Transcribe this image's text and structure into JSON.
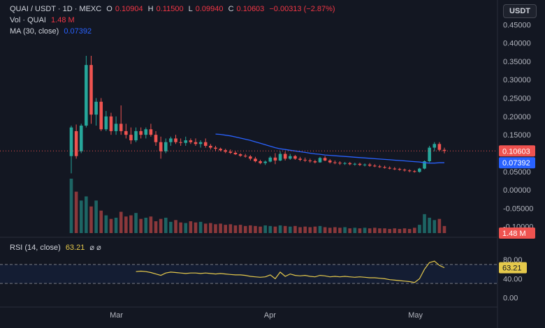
{
  "header": {
    "symbol": "QUAI / USDT · 1D · MEXC",
    "o_label": "O",
    "o_value": "0.10904",
    "h_label": "H",
    "h_value": "0.11500",
    "l_label": "L",
    "l_value": "0.09940",
    "c_label": "C",
    "c_value": "0.10603",
    "change": "−0.00313 (−2.87%)",
    "vol_label": "Vol · QUAI",
    "vol_value": "1.48 M",
    "ma_label": "MA (30, close)",
    "ma_value": "0.07392",
    "rsi_label": "RSI (14, close)",
    "rsi_value": "63.21",
    "currency_button": "USDT",
    "eye_icons": "⌀ ⌀"
  },
  "colors": {
    "up": "#26a69a",
    "down": "#ef5350",
    "ma": "#2962ff",
    "rsi": "#e5c94b",
    "bg": "#131722"
  },
  "chart_data": [
    {
      "type": "candlestick",
      "title": "QUAI / USDT · 1D · MEXC",
      "y_ticks": [
        "0.45000",
        "0.40000",
        "0.35000",
        "0.30000",
        "0.25000",
        "0.20000",
        "0.15000",
        "0.10000",
        "0.05000",
        "0.00000",
        "-0.05000",
        "-0.10000"
      ],
      "x_ticks": [
        "Mar",
        "Apr",
        "May"
      ],
      "ylim": [
        -0.11,
        0.46
      ],
      "last_price_label": "0.10603",
      "ma_label": "0.07392",
      "volume_label": "1.48 M",
      "candles": [
        [
          0.092,
          0.175,
          0.045,
          0.17
        ],
        [
          0.16,
          0.178,
          0.085,
          0.092
        ],
        [
          0.105,
          0.18,
          0.1,
          0.175
        ],
        [
          0.175,
          0.365,
          0.17,
          0.34
        ],
        [
          0.34,
          0.365,
          0.18,
          0.205
        ],
        [
          0.205,
          0.25,
          0.175,
          0.24
        ],
        [
          0.24,
          0.25,
          0.16,
          0.165
        ],
        [
          0.165,
          0.215,
          0.16,
          0.2
        ],
        [
          0.2,
          0.21,
          0.15,
          0.16
        ],
        [
          0.16,
          0.2,
          0.15,
          0.18
        ],
        [
          0.18,
          0.23,
          0.15,
          0.16
        ],
        [
          0.16,
          0.18,
          0.14,
          0.15
        ],
        [
          0.15,
          0.17,
          0.125,
          0.135
        ],
        [
          0.135,
          0.17,
          0.13,
          0.16
        ],
        [
          0.16,
          0.17,
          0.14,
          0.15
        ],
        [
          0.15,
          0.17,
          0.14,
          0.165
        ],
        [
          0.165,
          0.18,
          0.145,
          0.15
        ],
        [
          0.15,
          0.16,
          0.12,
          0.13
        ],
        [
          0.13,
          0.145,
          0.085,
          0.105
        ],
        [
          0.105,
          0.14,
          0.1,
          0.13
        ],
        [
          0.13,
          0.145,
          0.12,
          0.14
        ],
        [
          0.14,
          0.15,
          0.125,
          0.13
        ],
        [
          0.13,
          0.14,
          0.12,
          0.128
        ],
        [
          0.128,
          0.145,
          0.12,
          0.135
        ],
        [
          0.135,
          0.14,
          0.125,
          0.13
        ],
        [
          0.13,
          0.14,
          0.12,
          0.125
        ],
        [
          0.125,
          0.135,
          0.115,
          0.13
        ],
        [
          0.13,
          0.14,
          0.115,
          0.12
        ],
        [
          0.12,
          0.125,
          0.11,
          0.115
        ],
        [
          0.115,
          0.12,
          0.105,
          0.112
        ],
        [
          0.112,
          0.115,
          0.105,
          0.108
        ],
        [
          0.108,
          0.112,
          0.1,
          0.104
        ],
        [
          0.104,
          0.11,
          0.098,
          0.101
        ],
        [
          0.101,
          0.105,
          0.095,
          0.097
        ],
        [
          0.097,
          0.1,
          0.09,
          0.093
        ],
        [
          0.093,
          0.098,
          0.088,
          0.091
        ],
        [
          0.091,
          0.095,
          0.08,
          0.085
        ],
        [
          0.085,
          0.09,
          0.075,
          0.078
        ],
        [
          0.078,
          0.082,
          0.07,
          0.073
        ],
        [
          0.073,
          0.08,
          0.068,
          0.077
        ],
        [
          0.077,
          0.092,
          0.075,
          0.088
        ],
        [
          0.088,
          0.1,
          0.07,
          0.08
        ],
        [
          0.08,
          0.105,
          0.078,
          0.098
        ],
        [
          0.098,
          0.104,
          0.08,
          0.085
        ],
        [
          0.085,
          0.098,
          0.082,
          0.092
        ],
        [
          0.092,
          0.095,
          0.082,
          0.085
        ],
        [
          0.085,
          0.09,
          0.078,
          0.082
        ],
        [
          0.082,
          0.088,
          0.076,
          0.08
        ],
        [
          0.08,
          0.085,
          0.074,
          0.078
        ],
        [
          0.078,
          0.082,
          0.072,
          0.075
        ],
        [
          0.075,
          0.09,
          0.074,
          0.087
        ],
        [
          0.087,
          0.092,
          0.078,
          0.08
        ],
        [
          0.08,
          0.084,
          0.072,
          0.075
        ],
        [
          0.075,
          0.08,
          0.07,
          0.074
        ],
        [
          0.074,
          0.078,
          0.068,
          0.072
        ],
        [
          0.072,
          0.076,
          0.068,
          0.073
        ],
        [
          0.073,
          0.076,
          0.067,
          0.07
        ],
        [
          0.07,
          0.074,
          0.066,
          0.071
        ],
        [
          0.071,
          0.074,
          0.065,
          0.068
        ],
        [
          0.068,
          0.072,
          0.064,
          0.069
        ],
        [
          0.069,
          0.073,
          0.063,
          0.066
        ],
        [
          0.066,
          0.07,
          0.062,
          0.064
        ],
        [
          0.064,
          0.068,
          0.06,
          0.062
        ],
        [
          0.062,
          0.066,
          0.058,
          0.06
        ],
        [
          0.06,
          0.064,
          0.056,
          0.058
        ],
        [
          0.058,
          0.062,
          0.054,
          0.057
        ],
        [
          0.057,
          0.06,
          0.052,
          0.055
        ],
        [
          0.055,
          0.058,
          0.05,
          0.053
        ],
        [
          0.053,
          0.056,
          0.048,
          0.051
        ],
        [
          0.051,
          0.054,
          0.047,
          0.049
        ],
        [
          0.049,
          0.06,
          0.047,
          0.058
        ],
        [
          0.058,
          0.08,
          0.056,
          0.078
        ],
        [
          0.078,
          0.12,
          0.075,
          0.115
        ],
        [
          0.115,
          0.13,
          0.105,
          0.125
        ],
        [
          0.125,
          0.13,
          0.105,
          0.109
        ],
        [
          0.10904,
          0.115,
          0.0994,
          0.10603
        ]
      ],
      "ma30": [
        null,
        null,
        null,
        null,
        null,
        null,
        null,
        null,
        null,
        null,
        null,
        null,
        null,
        null,
        null,
        null,
        null,
        null,
        null,
        null,
        null,
        null,
        null,
        null,
        null,
        null,
        null,
        null,
        null,
        0.152,
        0.151,
        0.149,
        0.147,
        0.144,
        0.141,
        0.138,
        0.135,
        0.131,
        0.127,
        0.123,
        0.119,
        0.115,
        0.112,
        0.11,
        0.108,
        0.106,
        0.104,
        0.102,
        0.1,
        0.098,
        0.097,
        0.095,
        0.094,
        0.093,
        0.092,
        0.091,
        0.09,
        0.089,
        0.088,
        0.087,
        0.086,
        0.085,
        0.084,
        0.083,
        0.082,
        0.081,
        0.08,
        0.079,
        0.078,
        0.077,
        0.076,
        0.074,
        0.073,
        0.073,
        0.074,
        0.07392
      ],
      "volume": [
        0.92,
        0.7,
        0.55,
        0.62,
        0.45,
        0.55,
        0.38,
        0.3,
        0.24,
        0.26,
        0.36,
        0.28,
        0.3,
        0.34,
        0.24,
        0.26,
        0.28,
        0.2,
        0.24,
        0.26,
        0.19,
        0.22,
        0.18,
        0.17,
        0.2,
        0.18,
        0.19,
        0.16,
        0.17,
        0.15,
        0.16,
        0.14,
        0.15,
        0.13,
        0.14,
        0.12,
        0.13,
        0.12,
        0.11,
        0.13,
        0.12,
        0.11,
        0.13,
        0.12,
        0.11,
        0.12,
        0.1,
        0.11,
        0.1,
        0.11,
        0.12,
        0.1,
        0.09,
        0.1,
        0.09,
        0.1,
        0.08,
        0.09,
        0.08,
        0.09,
        0.08,
        0.09,
        0.08,
        0.08,
        0.07,
        0.08,
        0.07,
        0.08,
        0.07,
        0.09,
        0.14,
        0.32,
        0.26,
        0.22,
        0.24,
        0.12
      ]
    },
    {
      "type": "line",
      "title": "RSI (14, close)",
      "y_ticks": [
        "80.00",
        "40.00",
        "0.00"
      ],
      "ylim": [
        -8,
        95
      ],
      "bands": [
        70,
        30
      ],
      "last_value_label": "63.21",
      "values": [
        null,
        null,
        null,
        null,
        null,
        null,
        null,
        null,
        null,
        null,
        null,
        null,
        null,
        55,
        56,
        55,
        53,
        50,
        47,
        52,
        54,
        53,
        52,
        51,
        52,
        52,
        51,
        52,
        51,
        50,
        51,
        50,
        49,
        48,
        48,
        47,
        45,
        44,
        43,
        44,
        48,
        40,
        54,
        45,
        50,
        47,
        46,
        47,
        45,
        44,
        47,
        46,
        44,
        45,
        44,
        45,
        44,
        43,
        44,
        43,
        42,
        42,
        41,
        40,
        38,
        37,
        36,
        35,
        34,
        32,
        40,
        60,
        74,
        77,
        68,
        63.21
      ]
    }
  ]
}
